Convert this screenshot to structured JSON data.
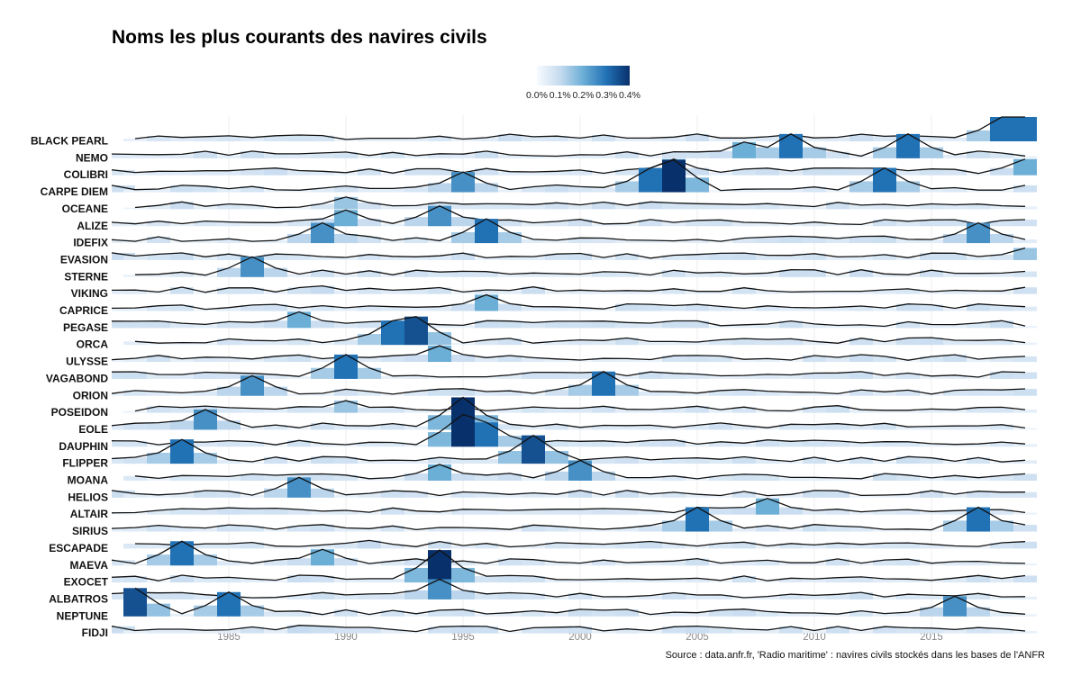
{
  "chart_data": {
    "type": "ridgeline-heatmap",
    "title": "Noms les plus courants des navires civils",
    "source": "Source : data.anfr.fr, 'Radio maritime' : navires civils stockés dans les bases de l'ANFR",
    "legend": {
      "ticks": [
        "0.0%",
        "0.1%",
        "0.2%",
        "0.3%",
        "0.4%"
      ],
      "colors": [
        "#f7fbff",
        "#c6dbef",
        "#6baed6",
        "#2171b5",
        "#08306b"
      ],
      "range": [
        0,
        0.4
      ]
    },
    "x_ticks": [
      1985,
      1990,
      1995,
      2000,
      2005,
      2010,
      2015
    ],
    "xlim": [
      1980,
      2019
    ],
    "names": [
      "BLACK PEARL",
      "NEMO",
      "COLIBRI",
      "CARPE DIEM",
      "OCEANE",
      "ALIZE",
      "IDEFIX",
      "EVASION",
      "STERNE",
      "VIKING",
      "CAPRICE",
      "PEGASE",
      "ORCA",
      "ULYSSE",
      "VAGABOND",
      "ORION",
      "POSEIDON",
      "EOLE",
      "DAUPHIN",
      "FLIPPER",
      "MOANA",
      "HELIOS",
      "ALTAIR",
      "SIRIUS",
      "ESCAPADE",
      "MAEVA",
      "EXOCET",
      "ALBATROS",
      "NEPTUNE",
      "FIDJI"
    ],
    "peaks": {
      "BLACK PEARL": [
        [
          2018,
          0.3
        ],
        [
          2019,
          0.3
        ]
      ],
      "NEMO": [
        [
          2009,
          0.3
        ],
        [
          2014,
          0.3
        ],
        [
          2007,
          0.2
        ]
      ],
      "COLIBRI": [
        [
          2004,
          0.2
        ],
        [
          2019,
          0.2
        ]
      ],
      "CARPE DIEM": [
        [
          2004,
          0.4
        ],
        [
          2003,
          0.3
        ],
        [
          1995,
          0.25
        ],
        [
          2013,
          0.3
        ]
      ],
      "OCEANE": [
        [
          1990,
          0.15
        ]
      ],
      "ALIZE": [
        [
          1994,
          0.25
        ],
        [
          1990,
          0.2
        ]
      ],
      "IDEFIX": [
        [
          1996,
          0.3
        ],
        [
          1989,
          0.25
        ],
        [
          2017,
          0.25
        ]
      ],
      "EVASION": [
        [
          2019,
          0.15
        ]
      ],
      "STERNE": [
        [
          1986,
          0.25
        ]
      ],
      "VIKING": [
        [
          1989,
          0.1
        ]
      ],
      "CAPRICE": [
        [
          1996,
          0.2
        ]
      ],
      "PEGASE": [
        [
          1988,
          0.2
        ]
      ],
      "ORCA": [
        [
          1993,
          0.35
        ],
        [
          1992,
          0.3
        ]
      ],
      "ULYSSE": [
        [
          1994,
          0.2
        ]
      ],
      "VAGABOND": [
        [
          1990,
          0.3
        ]
      ],
      "ORION": [
        [
          2001,
          0.3
        ],
        [
          1986,
          0.25
        ]
      ],
      "POSEIDON": [
        [
          1990,
          0.15
        ]
      ],
      "EOLE": [
        [
          1995,
          0.4
        ],
        [
          1984,
          0.25
        ]
      ],
      "DAUPHIN": [
        [
          1995,
          0.4
        ],
        [
          1996,
          0.3
        ]
      ],
      "FLIPPER": [
        [
          1998,
          0.35
        ],
        [
          1983,
          0.3
        ]
      ],
      "MOANA": [
        [
          1994,
          0.2
        ],
        [
          2000,
          0.25
        ]
      ],
      "HELIOS": [
        [
          1988,
          0.25
        ]
      ],
      "ALTAIR": [
        [
          2008,
          0.2
        ]
      ],
      "SIRIUS": [
        [
          2005,
          0.3
        ],
        [
          2017,
          0.3
        ]
      ],
      "ESCAPADE": [
        [
          1991,
          0.1
        ]
      ],
      "MAEVA": [
        [
          1983,
          0.3
        ],
        [
          1989,
          0.2
        ]
      ],
      "EXOCET": [
        [
          1994,
          0.4
        ]
      ],
      "ALBATROS": [
        [
          1994,
          0.25
        ]
      ],
      "NEPTUNE": [
        [
          1981,
          0.35
        ],
        [
          1985,
          0.3
        ],
        [
          2016,
          0.25
        ]
      ],
      "FIDJI": [
        [
          1988,
          0.1
        ]
      ]
    }
  }
}
